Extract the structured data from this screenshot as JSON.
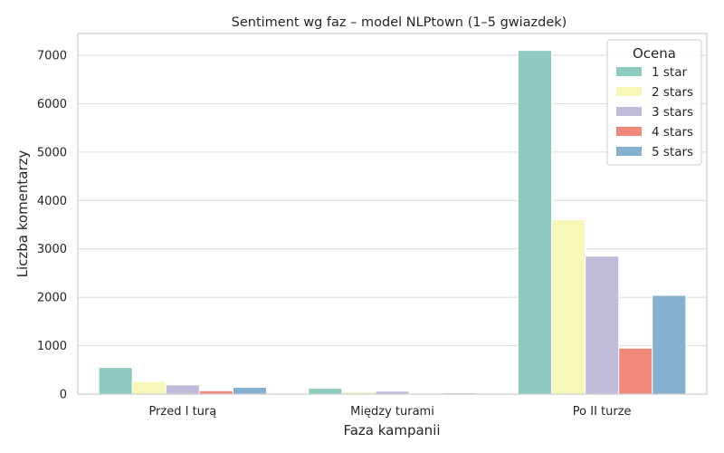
{
  "chart_data": {
    "type": "bar",
    "title": "Sentiment wg faz – model NLPtown (1–5 gwiazdek)",
    "xlabel": "Faza kampanii",
    "ylabel": "Liczba komentarzy",
    "categories": [
      "Przed I turą",
      "Między turami",
      "Po II turze"
    ],
    "ylim": [
      0,
      7450
    ],
    "yticks": [
      0,
      1000,
      2000,
      3000,
      4000,
      5000,
      6000,
      7000
    ],
    "grid": true,
    "legend": {
      "title": "Ocena",
      "placement": "top-right"
    },
    "series": [
      {
        "name": "1 star",
        "color": "#8dcbbf",
        "values": [
          550,
          120,
          7100
        ]
      },
      {
        "name": "2 stars",
        "color": "#f7f7b8",
        "values": [
          260,
          40,
          3600
        ]
      },
      {
        "name": "3 stars",
        "color": "#bfbbd9",
        "values": [
          190,
          60,
          2850
        ]
      },
      {
        "name": "4 stars",
        "color": "#f0897a",
        "values": [
          70,
          15,
          950
        ]
      },
      {
        "name": "5 stars",
        "color": "#85b0cf",
        "values": [
          140,
          25,
          2040
        ]
      }
    ]
  }
}
